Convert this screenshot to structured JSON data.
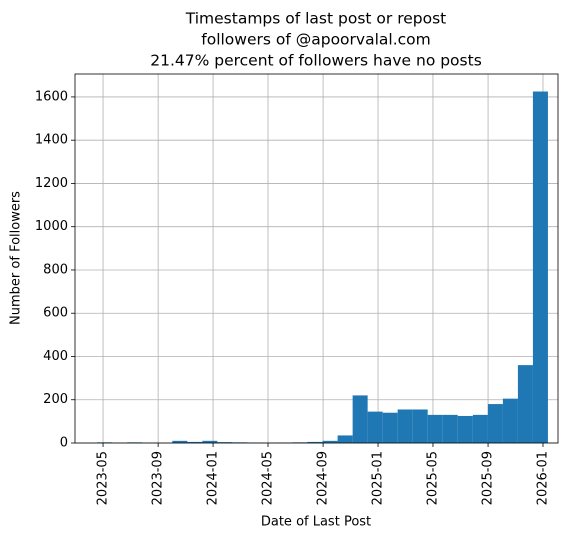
{
  "chart_data": {
    "type": "histogram",
    "title": [
      "Timestamps of last post or repost",
      "followers of @apoorvalal.com",
      "21.47% percent of followers have no posts"
    ],
    "xlabel": "Date of Last Post",
    "ylabel": "Number of Followers",
    "bins": [
      2023.297,
      2023.388,
      2023.479,
      2023.57,
      2023.661,
      2023.753,
      2023.844,
      2023.935,
      2024.026,
      2024.117,
      2024.208,
      2024.299,
      2024.39,
      2024.481,
      2024.572,
      2024.664,
      2024.755,
      2024.846,
      2024.937,
      2025.028,
      2025.119,
      2025.21,
      2025.301,
      2025.392,
      2025.483,
      2025.575,
      2025.666,
      2025.757,
      2025.848,
      2025.939,
      2026.03
    ],
    "values": [
      3,
      1,
      3,
      1,
      0,
      10,
      5,
      10,
      4,
      3,
      2,
      1,
      2,
      3,
      5,
      10,
      35,
      220,
      145,
      140,
      155,
      155,
      130,
      130,
      125,
      130,
      180,
      205,
      360,
      1625
    ],
    "color": "#1f77b4",
    "xlim": [
      2023.163,
      2026.091
    ],
    "xticks": [
      {
        "value": 2023.333,
        "label": "2023-05"
      },
      {
        "value": 2023.667,
        "label": "2023-09"
      },
      {
        "value": 2024.0,
        "label": "2024-01"
      },
      {
        "value": 2024.333,
        "label": "2024-05"
      },
      {
        "value": 2024.667,
        "label": "2024-09"
      },
      {
        "value": 2025.0,
        "label": "2025-01"
      },
      {
        "value": 2025.333,
        "label": "2025-05"
      },
      {
        "value": 2025.667,
        "label": "2025-09"
      },
      {
        "value": 2026.0,
        "label": "2026-01"
      }
    ],
    "ylim": [
      0,
      1706
    ],
    "yticks": [
      0,
      200,
      400,
      600,
      800,
      1000,
      1200,
      1400,
      1600
    ],
    "grid": true
  }
}
